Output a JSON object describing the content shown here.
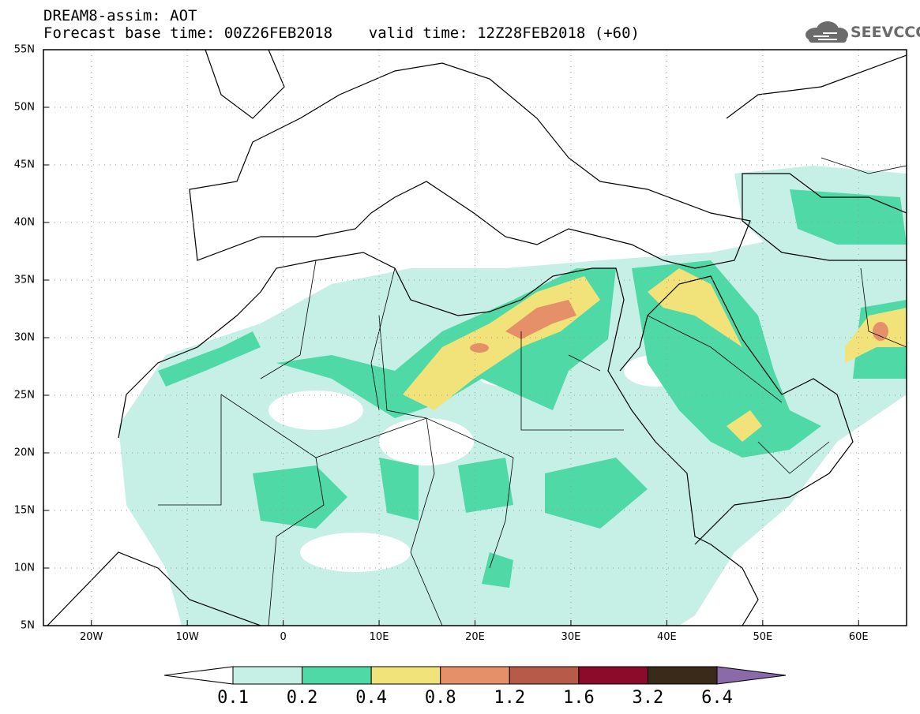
{
  "header": {
    "title_line1": "DREAM8-assim: AOT",
    "title_line2": "Forecast base time: 00Z26FEB2018    valid time: 12Z28FEB2018 (+60)"
  },
  "logo": {
    "text": "SEEVCCC",
    "icon": "cloud-logo-icon"
  },
  "map": {
    "lat_labels": [
      "55N",
      "50N",
      "45N",
      "40N",
      "35N",
      "30N",
      "25N",
      "20N",
      "15N",
      "10N",
      "5N"
    ],
    "lon_labels": [
      "20W",
      "10W",
      "0",
      "10E",
      "20E",
      "30E",
      "40E",
      "50E",
      "60E"
    ],
    "lat_values": [
      55,
      50,
      45,
      40,
      35,
      30,
      25,
      20,
      15,
      10,
      5
    ],
    "lon_values": [
      -20,
      -10,
      0,
      10,
      20,
      30,
      40,
      50,
      60
    ],
    "lon_range": [
      -25,
      65
    ],
    "lat_range": [
      5,
      55
    ],
    "grid": "dotted",
    "colors": {
      "coast": "#000000",
      "grid": "#9a9a9a"
    }
  },
  "legend": {
    "labels": [
      "0.1",
      "0.2",
      "0.4",
      "0.8",
      "1.2",
      "1.6",
      "3.2",
      "6.4"
    ],
    "colors": [
      "#ffffff",
      "#c6efe6",
      "#4fd9a6",
      "#f2e27a",
      "#e6906a",
      "#b85a4a",
      "#8c0a2a",
      "#3a2a1a",
      "#8a6aa8"
    ]
  }
}
